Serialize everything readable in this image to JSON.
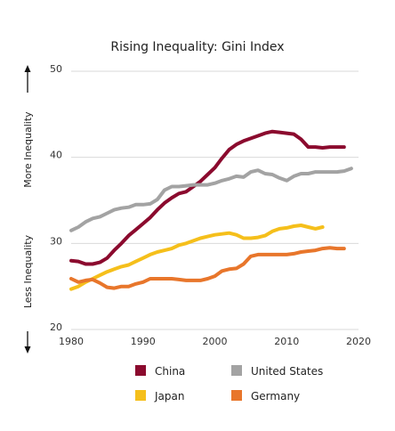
{
  "chart_data": {
    "type": "line",
    "title": "Rising Inequality: Gini Index",
    "y_annotations": {
      "top": "More Inequality",
      "bottom": "Less Inequality"
    },
    "xlim": [
      1980,
      2020
    ],
    "ylim": [
      20,
      50
    ],
    "x_ticks": [
      1980,
      1990,
      2000,
      2010,
      2020
    ],
    "y_ticks": [
      20,
      30,
      40,
      50
    ],
    "grid": "horizontal",
    "legend_position": "bottom",
    "series": [
      {
        "name": "China",
        "color": "#8b0a2e",
        "x": [
          1980,
          1981,
          1982,
          1983,
          1984,
          1985,
          1986,
          1987,
          1988,
          1989,
          1990,
          1991,
          1992,
          1993,
          1994,
          1995,
          1996,
          1997,
          1998,
          1999,
          2000,
          2001,
          2002,
          2003,
          2004,
          2005,
          2006,
          2007,
          2008,
          2009,
          2010,
          2011,
          2012,
          2013,
          2014,
          2015,
          2016,
          2017,
          2018
        ],
        "y": [
          28.0,
          27.9,
          27.6,
          27.6,
          27.8,
          28.3,
          29.2,
          30.0,
          30.9,
          31.6,
          32.3,
          33.0,
          33.9,
          34.7,
          35.3,
          35.8,
          36.0,
          36.6,
          37.2,
          38.0,
          38.8,
          39.9,
          40.9,
          41.5,
          41.9,
          42.2,
          42.5,
          42.8,
          43.0,
          42.9,
          42.8,
          42.7,
          42.1,
          41.2,
          41.2,
          41.1,
          41.2,
          41.2,
          41.2
        ]
      },
      {
        "name": "United States",
        "color": "#a3a3a3",
        "x": [
          1980,
          1981,
          1982,
          1983,
          1984,
          1985,
          1986,
          1987,
          1988,
          1989,
          1990,
          1991,
          1992,
          1993,
          1994,
          1995,
          1996,
          1997,
          1998,
          1999,
          2000,
          2001,
          2002,
          2003,
          2004,
          2005,
          2006,
          2007,
          2008,
          2009,
          2010,
          2011,
          2012,
          2013,
          2014,
          2015,
          2016,
          2017,
          2018,
          2019
        ],
        "y": [
          31.5,
          31.9,
          32.5,
          32.9,
          33.1,
          33.5,
          33.9,
          34.1,
          34.2,
          34.5,
          34.5,
          34.6,
          35.1,
          36.2,
          36.6,
          36.6,
          36.7,
          36.8,
          36.8,
          36.8,
          37.0,
          37.3,
          37.5,
          37.8,
          37.7,
          38.3,
          38.5,
          38.1,
          38.0,
          37.6,
          37.3,
          37.8,
          38.1,
          38.1,
          38.3,
          38.3,
          38.3,
          38.3,
          38.4,
          38.7
        ]
      },
      {
        "name": "Japan",
        "color": "#f5bf1b",
        "x": [
          1980,
          1981,
          1982,
          1983,
          1984,
          1985,
          1986,
          1987,
          1988,
          1989,
          1990,
          1991,
          1992,
          1993,
          1994,
          1995,
          1996,
          1997,
          1998,
          1999,
          2000,
          2001,
          2002,
          2003,
          2004,
          2005,
          2006,
          2007,
          2008,
          2009,
          2010,
          2011,
          2012,
          2013,
          2014,
          2015
        ],
        "y": [
          24.7,
          25.0,
          25.5,
          25.9,
          26.3,
          26.7,
          27.0,
          27.3,
          27.5,
          27.9,
          28.3,
          28.7,
          29.0,
          29.2,
          29.4,
          29.8,
          30.0,
          30.3,
          30.6,
          30.8,
          31.0,
          31.1,
          31.2,
          31.0,
          30.6,
          30.6,
          30.7,
          30.9,
          31.4,
          31.7,
          31.8,
          32.0,
          32.1,
          31.9,
          31.7,
          31.9
        ]
      },
      {
        "name": "Germany",
        "color": "#e8762b",
        "x": [
          1980,
          1981,
          1982,
          1983,
          1984,
          1985,
          1986,
          1987,
          1988,
          1989,
          1990,
          1991,
          1992,
          1993,
          1994,
          1995,
          1996,
          1997,
          1998,
          1999,
          2000,
          2001,
          2002,
          2003,
          2004,
          2005,
          2006,
          2007,
          2008,
          2009,
          2010,
          2011,
          2012,
          2013,
          2014,
          2015,
          2016,
          2017,
          2018
        ],
        "y": [
          25.9,
          25.5,
          25.7,
          25.8,
          25.4,
          24.9,
          24.8,
          25.0,
          25.0,
          25.3,
          25.5,
          25.9,
          25.9,
          25.9,
          25.9,
          25.8,
          25.7,
          25.7,
          25.7,
          25.9,
          26.2,
          26.8,
          27.0,
          27.1,
          27.6,
          28.5,
          28.7,
          28.7,
          28.7,
          28.7,
          28.7,
          28.8,
          29.0,
          29.1,
          29.2,
          29.4,
          29.5,
          29.4,
          29.4
        ]
      }
    ]
  }
}
